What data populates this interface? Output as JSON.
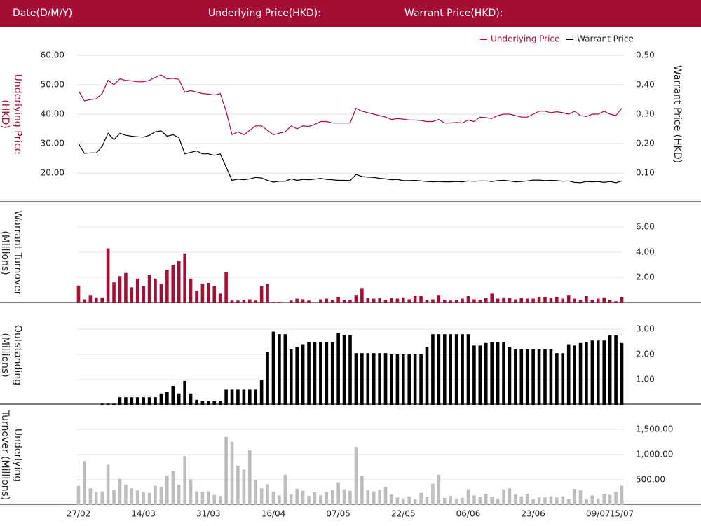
{
  "header": {
    "fields": [
      "Date(D/M/Y)",
      "Underlying Price(HKD):",
      "Warrant Price(HKD):"
    ]
  },
  "chart_data": [
    {
      "type": "line",
      "y_title": [
        "Underlying Price",
        "(HKD)"
      ],
      "y2_title": [
        "Warrant  Price (HKD)"
      ],
      "legend": "top-right",
      "grid": true,
      "ylim": [
        15,
        65
      ],
      "yticks": [
        {
          "value": 20,
          "label": "20.00"
        },
        {
          "value": 30,
          "label": "30.00"
        },
        {
          "value": 40,
          "label": "40.00"
        },
        {
          "value": 50,
          "label": "50.00"
        },
        {
          "value": 60,
          "label": "60.00"
        }
      ],
      "y2lim": [
        0.05,
        0.55
      ],
      "y2ticks": [
        {
          "value": 0.1,
          "label": "0.10"
        },
        {
          "value": 0.2,
          "label": "0.20"
        },
        {
          "value": 0.3,
          "label": "0.30"
        },
        {
          "value": 0.4,
          "label": "0.40"
        },
        {
          "value": 0.5,
          "label": "0.50"
        }
      ],
      "series": [
        {
          "name": "Underlying Price",
          "color": "#a50f34",
          "axis": "y",
          "values": [
            48,
            44.5,
            45,
            45.2,
            47,
            51.5,
            50,
            52,
            51.5,
            51.3,
            51,
            51,
            51.5,
            52.5,
            53.3,
            52,
            52.2,
            51.8,
            47.5,
            48,
            47.5,
            47,
            46.8,
            46.5,
            47,
            41,
            33,
            34,
            33,
            34.5,
            36,
            36,
            34.5,
            33,
            33.5,
            34,
            36,
            35,
            36,
            35.8,
            36.5,
            37.5,
            37.5,
            37,
            37,
            37,
            37,
            42,
            41,
            40.5,
            40,
            39.5,
            39,
            38.2,
            38.5,
            38.3,
            38,
            38,
            37.8,
            37.5,
            37.5,
            38.2,
            37,
            37,
            37.2,
            37,
            38,
            37.5,
            39,
            38.8,
            38.5,
            39.5,
            40,
            40,
            39.5,
            39,
            39,
            40,
            41,
            41,
            40.5,
            40.8,
            40.5,
            40,
            41,
            39.5,
            39.2,
            40,
            40,
            41,
            40,
            39.5,
            42
          ]
        },
        {
          "name": "Warrant Price",
          "color": "#000000",
          "axis": "y2",
          "values": [
            0.2,
            0.167,
            0.168,
            0.168,
            0.19,
            0.235,
            0.213,
            0.235,
            0.228,
            0.225,
            0.223,
            0.222,
            0.228,
            0.24,
            0.243,
            0.225,
            0.23,
            0.22,
            0.165,
            0.17,
            0.175,
            0.165,
            0.165,
            0.16,
            0.165,
            0.12,
            0.075,
            0.079,
            0.077,
            0.08,
            0.085,
            0.083,
            0.075,
            0.069,
            0.072,
            0.072,
            0.08,
            0.075,
            0.078,
            0.077,
            0.079,
            0.082,
            0.078,
            0.077,
            0.075,
            0.075,
            0.074,
            0.095,
            0.088,
            0.086,
            0.085,
            0.082,
            0.08,
            0.077,
            0.078,
            0.074,
            0.074,
            0.075,
            0.073,
            0.071,
            0.07,
            0.071,
            0.07,
            0.07,
            0.071,
            0.07,
            0.073,
            0.072,
            0.073,
            0.073,
            0.071,
            0.074,
            0.075,
            0.073,
            0.07,
            0.071,
            0.073,
            0.076,
            0.076,
            0.074,
            0.075,
            0.074,
            0.072,
            0.073,
            0.068,
            0.067,
            0.071,
            0.07,
            0.071,
            0.068,
            0.071,
            0.067,
            0.073
          ]
        }
      ]
    },
    {
      "type": "bar",
      "y_title": [
        "Warrant  Turnover",
        "(Millions)"
      ],
      "color": "#a50f34",
      "grid": true,
      "ylim": [
        0,
        7
      ],
      "yticks": [
        {
          "value": 2,
          "label": "2.00"
        },
        {
          "value": 4,
          "label": "4.00"
        },
        {
          "value": 6,
          "label": "6.00"
        }
      ],
      "values": [
        1.35,
        0.25,
        0.6,
        0.4,
        0.4,
        4.3,
        1.6,
        2.1,
        2.35,
        1.2,
        1.9,
        1.3,
        2.2,
        1.9,
        1.5,
        2.6,
        3,
        3.3,
        3.9,
        1.9,
        0.9,
        1.5,
        1.55,
        1.3,
        0.7,
        2.4,
        0.15,
        0.15,
        0.2,
        0.25,
        0.15,
        1.3,
        1.45,
        0.05,
        0.05,
        0,
        0.15,
        0.3,
        0.25,
        0.15,
        0,
        0.25,
        0.3,
        0.2,
        0.45,
        0.2,
        0.2,
        0.6,
        1.15,
        0.35,
        0.3,
        0.35,
        0.2,
        0.35,
        0.3,
        0.4,
        0.25,
        0.55,
        0.5,
        0.2,
        0.25,
        0.6,
        0.2,
        0.15,
        0.2,
        0.3,
        0.5,
        0.25,
        0.2,
        0.35,
        0.7,
        0.3,
        0.4,
        0.35,
        0.25,
        0.35,
        0.3,
        0.3,
        0.45,
        0.45,
        0.35,
        0.45,
        0.3,
        0.6,
        0.3,
        0.2,
        0.5,
        0.2,
        0.3,
        0.4,
        0.2,
        0.1,
        0.45
      ]
    },
    {
      "type": "bar",
      "y_title": [
        "Outstanding",
        "(Millions)"
      ],
      "color": "#000000",
      "grid": true,
      "ylim": [
        0,
        3.5
      ],
      "yticks": [
        {
          "value": 1,
          "label": "1.00"
        },
        {
          "value": 2,
          "label": "2.00"
        },
        {
          "value": 3,
          "label": "3.00"
        }
      ],
      "values": [
        0,
        0,
        0,
        0,
        0.05,
        0.05,
        0.05,
        0.3,
        0.3,
        0.3,
        0.3,
        0.3,
        0.3,
        0.3,
        0.45,
        0.5,
        0.75,
        0.45,
        0.95,
        0.45,
        0.2,
        0.15,
        0.15,
        0.15,
        0.15,
        0.6,
        0.6,
        0.6,
        0.6,
        0.6,
        0.6,
        1,
        2.1,
        2.9,
        2.8,
        2.8,
        2.2,
        2.3,
        2.4,
        2.5,
        2.5,
        2.5,
        2.5,
        2.5,
        2.85,
        2.75,
        2.75,
        2.05,
        2.05,
        2.05,
        2.05,
        2.05,
        2.05,
        2,
        2,
        2,
        2,
        2,
        2,
        2.3,
        2.8,
        2.8,
        2.8,
        2.8,
        2.8,
        2.8,
        2.8,
        2.35,
        2.35,
        2.45,
        2.5,
        2.5,
        2.5,
        2.3,
        2.2,
        2.2,
        2.2,
        2.2,
        2.2,
        2.2,
        2.2,
        2.05,
        2.05,
        2.4,
        2.35,
        2.45,
        2.5,
        2.55,
        2.55,
        2.55,
        2.75,
        2.75,
        2.45
      ]
    },
    {
      "type": "bar",
      "y_title": [
        "Underlying",
        "Turnover (Millions)"
      ],
      "color": "#bdbdbd",
      "grid": true,
      "ylim": [
        0,
        1750
      ],
      "yticks": [
        {
          "value": 500,
          "label": "500.00"
        },
        {
          "value": 1000,
          "label": "1,000.00"
        },
        {
          "value": 1500,
          "label": "1,500.00"
        }
      ],
      "categories": [
        "27/02",
        null,
        null,
        null,
        null,
        null,
        null,
        null,
        null,
        null,
        null,
        "14/03",
        null,
        null,
        null,
        null,
        null,
        null,
        null,
        null,
        null,
        null,
        "31/03",
        null,
        null,
        null,
        null,
        null,
        null,
        null,
        null,
        null,
        null,
        "16/04",
        null,
        null,
        null,
        null,
        null,
        null,
        null,
        null,
        null,
        null,
        "07/05",
        null,
        null,
        null,
        null,
        null,
        null,
        null,
        null,
        null,
        null,
        "22/05",
        null,
        null,
        null,
        null,
        null,
        null,
        null,
        null,
        null,
        null,
        "06/06",
        null,
        null,
        null,
        null,
        null,
        null,
        null,
        null,
        null,
        null,
        "23/06",
        null,
        null,
        null,
        null,
        null,
        null,
        null,
        null,
        null,
        null,
        "09/07",
        null,
        null,
        null,
        "15/07"
      ],
      "values": [
        380,
        870,
        330,
        250,
        270,
        800,
        300,
        520,
        400,
        330,
        290,
        250,
        240,
        380,
        350,
        580,
        680,
        400,
        970,
        510,
        270,
        260,
        270,
        200,
        180,
        1350,
        1250,
        780,
        700,
        1080,
        500,
        330,
        410,
        260,
        190,
        600,
        210,
        320,
        280,
        180,
        250,
        190,
        260,
        290,
        450,
        310,
        280,
        1150,
        570,
        290,
        270,
        300,
        350,
        210,
        150,
        130,
        170,
        120,
        240,
        160,
        420,
        600,
        140,
        180,
        130,
        140,
        310,
        190,
        160,
        220,
        160,
        130,
        310,
        330,
        210,
        170,
        220,
        120,
        150,
        150,
        170,
        150,
        170,
        120,
        320,
        290,
        110,
        190,
        130,
        220,
        200,
        260,
        380
      ]
    }
  ]
}
